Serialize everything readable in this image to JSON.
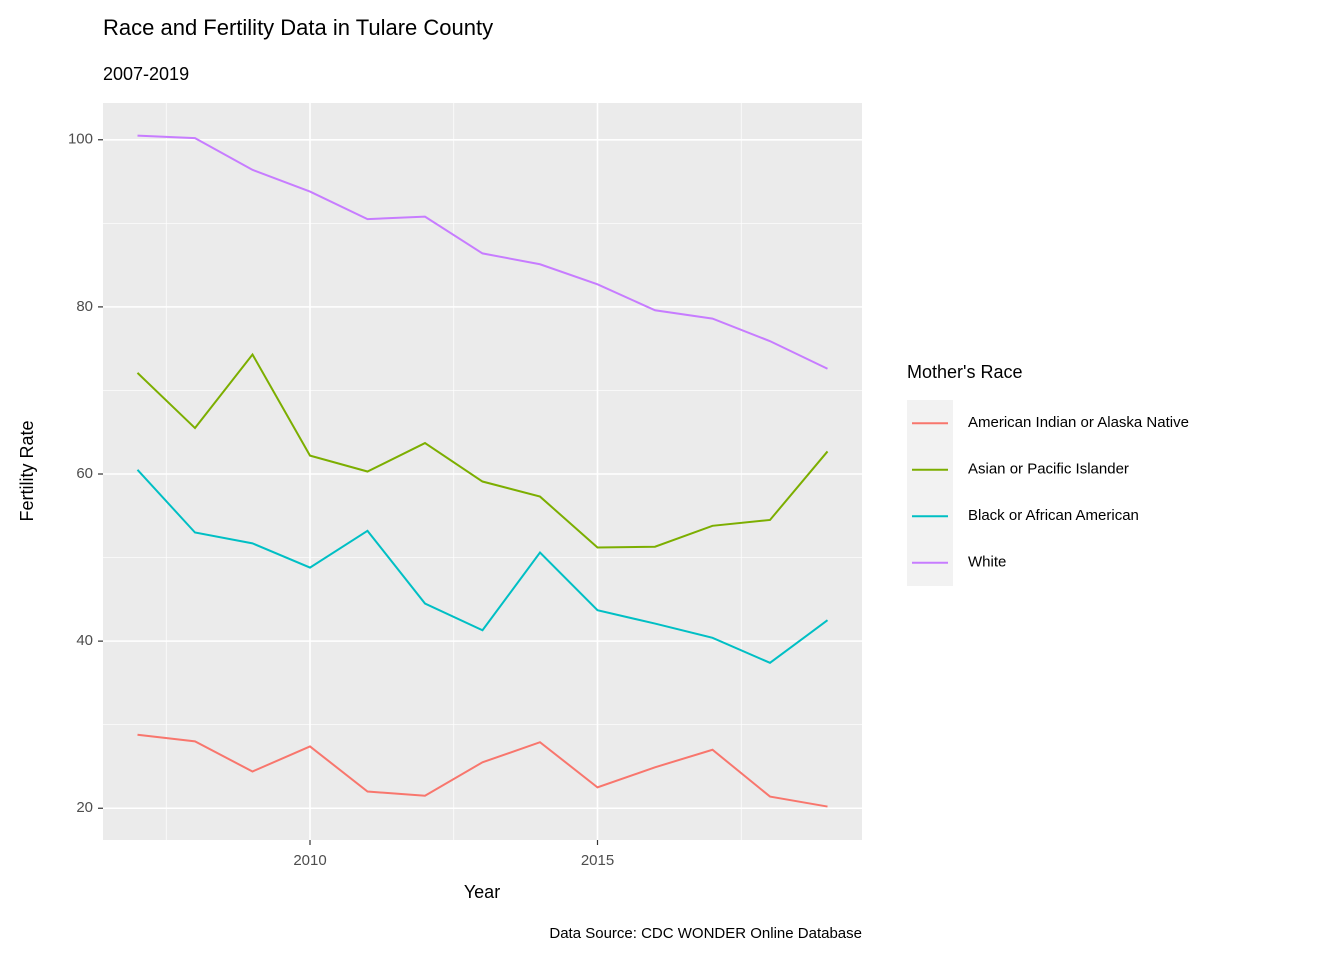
{
  "chart_data": {
    "type": "line",
    "title": "Race and Fertility Data in Tulare County",
    "subtitle": "2007-2019",
    "x_label": "Year",
    "y_label": "Fertility Rate",
    "caption": "Data Source: CDC WONDER Online Database",
    "legend_title": "Mother's Race",
    "legend_position": "right",
    "grid": true,
    "x": [
      2007,
      2008,
      2009,
      2010,
      2011,
      2012,
      2013,
      2014,
      2015,
      2016,
      2017,
      2018,
      2019
    ],
    "series": [
      {
        "name": "American Indian or Alaska Native",
        "color": "#F8766D",
        "values": [
          28.8,
          28.0,
          24.4,
          27.4,
          22.0,
          21.5,
          25.5,
          27.9,
          22.5,
          24.9,
          27.0,
          21.4,
          20.2
        ]
      },
      {
        "name": "Asian or Pacific Islander",
        "color": "#7CAE00",
        "values": [
          72.1,
          65.5,
          74.3,
          62.2,
          60.3,
          63.7,
          59.1,
          57.3,
          51.2,
          51.3,
          53.8,
          54.5,
          62.7
        ]
      },
      {
        "name": "Black or African American",
        "color": "#00BFC4",
        "values": [
          60.5,
          53.0,
          51.7,
          48.8,
          53.2,
          44.5,
          41.3,
          50.6,
          43.7,
          42.1,
          40.4,
          37.4,
          42.5
        ]
      },
      {
        "name": "White",
        "color": "#C77CFF",
        "values": [
          100.5,
          100.2,
          96.4,
          93.8,
          90.5,
          90.8,
          86.4,
          85.1,
          82.7,
          79.6,
          78.6,
          75.9,
          72.6
        ]
      }
    ],
    "xlim": [
      2006.4,
      2019.6
    ],
    "ylim": [
      16.2,
      104.4
    ],
    "xticks": [
      2010,
      2015
    ],
    "yticks": [
      20,
      40,
      60,
      80,
      100
    ],
    "x_minor_ticks": [
      2007.5,
      2012.5,
      2017.5
    ],
    "y_minor_ticks": [
      30,
      50,
      70,
      90
    ]
  }
}
